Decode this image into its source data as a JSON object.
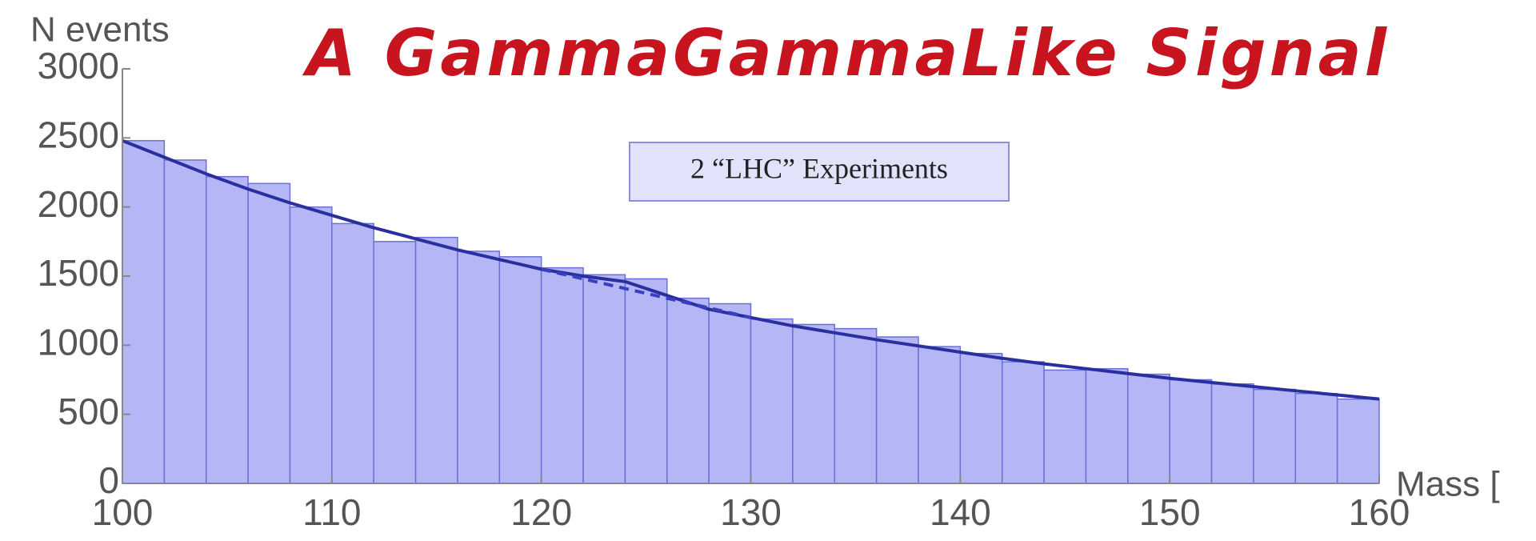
{
  "chart_data": {
    "type": "histogram",
    "title": "A GammaGammaLike Signal",
    "annotation": "2  “LHC” Experiments",
    "y_label": "N events",
    "x_label": "Mass [",
    "bins": [
      100,
      102,
      104,
      106,
      108,
      110,
      112,
      114,
      116,
      118,
      120,
      122,
      124,
      126,
      128,
      130,
      132,
      134,
      136,
      138,
      140,
      142,
      144,
      146,
      148,
      150,
      152,
      154,
      156,
      158,
      160
    ],
    "counts": [
      2480,
      2340,
      2220,
      2170,
      2000,
      1880,
      1750,
      1780,
      1680,
      1640,
      1560,
      1510,
      1480,
      1340,
      1300,
      1190,
      1150,
      1120,
      1060,
      990,
      940,
      880,
      820,
      830,
      790,
      750,
      720,
      680,
      650,
      610
    ],
    "color": "#b4b6f6",
    "edge_color": "#6b70d6",
    "lines": [
      {
        "style": "solid",
        "color": "#2a2fa0",
        "x": [
          100,
          102,
          104,
          106,
          108,
          110,
          112,
          114,
          116,
          118,
          120,
          122,
          124,
          126,
          128,
          130,
          132,
          134,
          136,
          138,
          140,
          142,
          144,
          146,
          148,
          150,
          152,
          154,
          156,
          158,
          160
        ],
        "values": [
          2480,
          2360,
          2240,
          2130,
          2030,
          1940,
          1850,
          1770,
          1690,
          1620,
          1550,
          1500,
          1460,
          1360,
          1260,
          1200,
          1140,
          1090,
          1040,
          995,
          950,
          905,
          865,
          830,
          795,
          760,
          730,
          700,
          670,
          640,
          610
        ]
      },
      {
        "style": "dashed",
        "color": "#3a3fc0",
        "x": [
          120,
          122,
          124,
          126,
          128,
          130
        ],
        "values": [
          1550,
          1480,
          1410,
          1340,
          1270,
          1200
        ]
      }
    ],
    "xlim": [
      100,
      160
    ],
    "ylim": [
      0,
      3000
    ],
    "xticks": [
      100,
      110,
      120,
      130,
      140,
      150,
      160
    ],
    "yticks": [
      0,
      500,
      1000,
      1500,
      2000,
      2500,
      3000
    ]
  }
}
